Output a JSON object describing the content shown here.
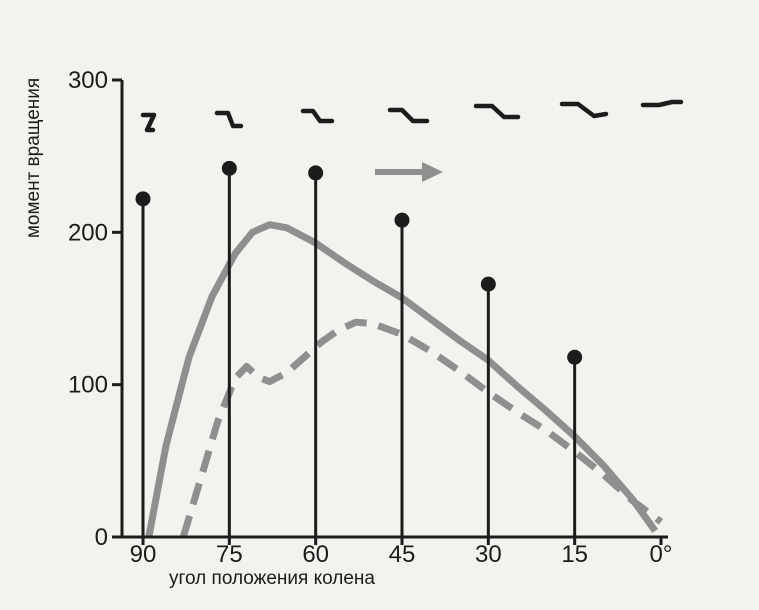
{
  "chart_data": {
    "type": "line",
    "title": "",
    "xlabel": "угол положения колена",
    "ylabel": "момент вращения",
    "x_ticks": [
      "90",
      "75",
      "60",
      "45",
      "30",
      "15",
      "0°"
    ],
    "y_ticks": [
      "0",
      "100",
      "200",
      "300"
    ],
    "xlim": [
      90,
      0
    ],
    "ylim": [
      0,
      300
    ],
    "grid": false,
    "stems": {
      "x": [
        90,
        75,
        60,
        45,
        30,
        15
      ],
      "values": [
        222,
        242,
        239,
        208,
        166,
        118
      ]
    },
    "series": [
      {
        "style": "solid",
        "color": "#8f8f8f",
        "x": [
          89,
          86,
          82,
          78,
          74,
          71,
          68,
          65,
          60,
          55,
          50,
          45,
          40,
          35,
          30,
          25,
          20,
          15,
          10,
          5,
          1
        ],
        "y": [
          0,
          60,
          118,
          158,
          186,
          200,
          205,
          203,
          193,
          180,
          168,
          157,
          143,
          129,
          116,
          99,
          83,
          66,
          47,
          25,
          4
        ]
      },
      {
        "style": "dashed",
        "color": "#8f8f8f",
        "x": [
          83,
          80,
          77,
          74,
          72,
          70,
          68,
          65,
          62,
          59,
          56,
          53,
          50,
          45,
          40,
          35,
          30,
          25,
          20,
          15,
          10,
          5,
          0
        ],
        "y": [
          0,
          38,
          76,
          104,
          112,
          105,
          102,
          108,
          118,
          128,
          136,
          141,
          140,
          133,
          122,
          109,
          95,
          82,
          70,
          56,
          41,
          24,
          10
        ]
      }
    ],
    "arrow": {
      "direction": "right"
    }
  }
}
